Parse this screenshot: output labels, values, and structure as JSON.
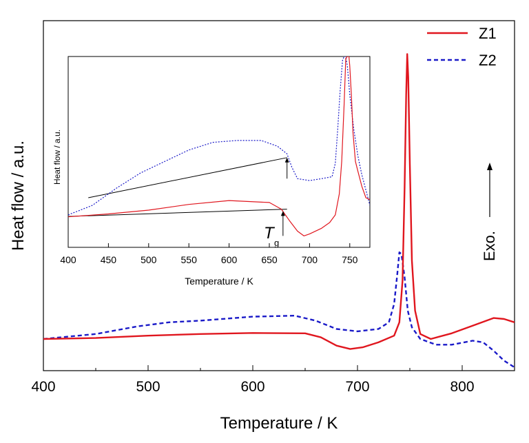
{
  "colors": {
    "z1": "#e0161e",
    "z2": "#1a1ac8",
    "axis": "#000000"
  },
  "chart_data": [
    {
      "type": "line",
      "xlabel": "Temperature / K",
      "ylabel": "Heat flow / a.u.",
      "xlim": [
        400,
        850
      ],
      "xticks": [
        400,
        500,
        600,
        700,
        800
      ],
      "legend": {
        "placement": "top-right",
        "entries": [
          "Z1",
          "Z2"
        ]
      },
      "annotations": {
        "exo": "Exo."
      },
      "series": [
        {
          "name": "Z1",
          "style": "solid",
          "x": [
            400,
            450,
            500,
            550,
            600,
            650,
            665,
            680,
            693,
            705,
            720,
            735,
            740,
            743,
            745,
            746.5,
            747.5,
            748.5,
            750,
            752,
            755,
            760,
            770,
            790,
            810,
            830,
            840,
            850
          ],
          "y": [
            0.095,
            0.098,
            0.105,
            0.11,
            0.113,
            0.112,
            0.1,
            0.075,
            0.065,
            0.07,
            0.085,
            0.105,
            0.145,
            0.27,
            0.55,
            0.83,
            0.95,
            0.88,
            0.62,
            0.33,
            0.18,
            0.11,
            0.095,
            0.112,
            0.135,
            0.158,
            0.155,
            0.145
          ]
        },
        {
          "name": "Z2",
          "style": "dashed",
          "x": [
            400,
            450,
            490,
            520,
            550,
            600,
            640,
            660,
            680,
            700,
            720,
            730,
            735,
            738,
            740,
            742,
            745,
            748,
            752,
            760,
            775,
            790,
            810,
            820,
            830,
            840,
            850
          ],
          "y": [
            0.095,
            0.11,
            0.133,
            0.145,
            0.15,
            0.162,
            0.165,
            0.15,
            0.125,
            0.118,
            0.125,
            0.145,
            0.2,
            0.29,
            0.355,
            0.35,
            0.28,
            0.18,
            0.13,
            0.095,
            0.078,
            0.078,
            0.09,
            0.085,
            0.06,
            0.03,
            0.01
          ]
        }
      ]
    },
    {
      "type": "line",
      "xlabel": "Temperature / K",
      "ylabel": "Heat flow / a.u.",
      "xlim": [
        400,
        775
      ],
      "xticks": [
        400,
        450,
        500,
        550,
        600,
        650,
        700,
        750
      ],
      "annotations": {
        "tg_main": "T",
        "tg_sub": "g"
      },
      "series": [
        {
          "name": "Z1",
          "style": "solid",
          "x": [
            400,
            450,
            500,
            550,
            600,
            650,
            665,
            675,
            685,
            693,
            700,
            715,
            725,
            732,
            737,
            740,
            743,
            745,
            747,
            749,
            750,
            752,
            754,
            757,
            760,
            765,
            770,
            775
          ],
          "y": [
            0.16,
            0.175,
            0.195,
            0.225,
            0.245,
            0.235,
            0.2,
            0.14,
            0.085,
            0.06,
            0.07,
            0.1,
            0.13,
            0.17,
            0.28,
            0.45,
            0.75,
            0.99,
            1.0,
            1.0,
            0.95,
            0.8,
            0.6,
            0.45,
            0.4,
            0.32,
            0.26,
            0.25
          ]
        },
        {
          "name": "Z2",
          "style": "dashed",
          "x": [
            400,
            430,
            460,
            490,
            520,
            550,
            580,
            610,
            640,
            660,
            672,
            678,
            685,
            700,
            715,
            728,
            732,
            735,
            738,
            741,
            743,
            745,
            747,
            750,
            755,
            760,
            765,
            770,
            775
          ],
          "y": [
            0.17,
            0.22,
            0.31,
            0.39,
            0.45,
            0.51,
            0.55,
            0.56,
            0.56,
            0.53,
            0.49,
            0.42,
            0.36,
            0.35,
            0.36,
            0.37,
            0.44,
            0.62,
            0.82,
            0.98,
            1.0,
            1.0,
            0.95,
            0.8,
            0.62,
            0.48,
            0.38,
            0.3,
            0.22
          ]
        }
      ],
      "baselines": [
        {
          "x": [
            400,
            672
          ],
          "y": [
            0.162,
            0.2
          ]
        },
        {
          "x": [
            425,
            672
          ],
          "y": [
            0.26,
            0.47
          ]
        }
      ],
      "tg_arrows": [
        {
          "x": 672,
          "y_from": 0.36,
          "y_to": 0.47
        },
        {
          "x": 667,
          "y_from": 0.06,
          "y_to": 0.19
        }
      ]
    }
  ]
}
